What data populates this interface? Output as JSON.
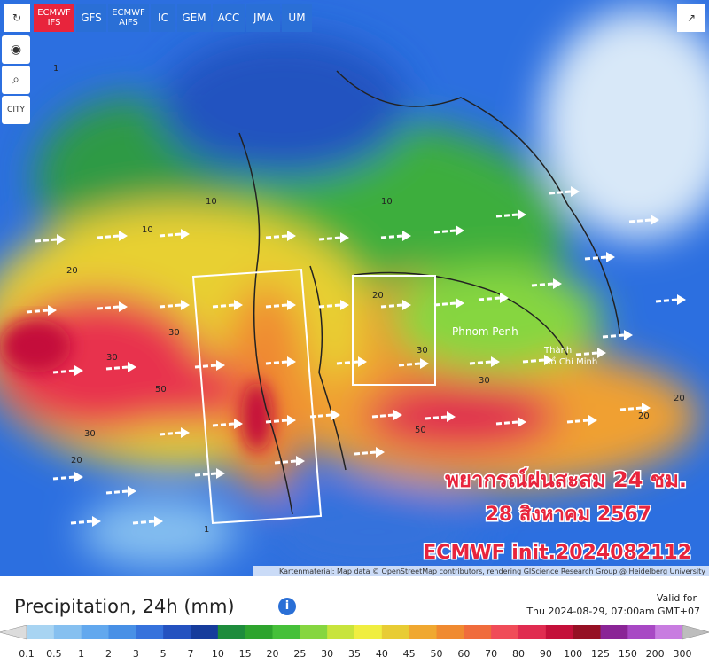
{
  "toolbar": {
    "models": [
      "ECMWF IFS",
      "GFS",
      "ECMWF AIFS",
      "IC",
      "GEM",
      "ACC",
      "JMA",
      "UM"
    ],
    "city": "CITY"
  },
  "map": {
    "places": [
      "Phnom Penh",
      "Thành",
      "Hồ Chí Minh"
    ],
    "contours": [
      "10",
      "20",
      "30",
      "30",
      "50",
      "30",
      "20",
      "10",
      "20",
      "30",
      "50",
      "30",
      "20",
      "20",
      "10",
      "1",
      "1"
    ],
    "overlay": [
      "พยากรณ์ฝนสะสม 24 ชม.",
      "28 สิงหาคม 2567",
      "ECMWF init.2024082112"
    ],
    "attribution": "Kartenmaterial: Map data © OpenStreetMap contributors, rendering GIScience Research Group @ Heidelberg University"
  },
  "legend": {
    "title": "Precipitation, 24h (mm)",
    "valid_label": "Valid for",
    "valid_time": "Thu 2024-08-29, 07:00am GMT+07",
    "labels": [
      0.1,
      0.5,
      1,
      2,
      3,
      5,
      7,
      10,
      15,
      20,
      25,
      30,
      35,
      40,
      45,
      50,
      60,
      70,
      80,
      90,
      100,
      125,
      150,
      200,
      300
    ],
    "colors": [
      "#dcdcdc",
      "#a8d4f2",
      "#86c0f0",
      "#62a8ee",
      "#4890e6",
      "#3672dc",
      "#2452c0",
      "#163c9c",
      "#1e8c3c",
      "#2ea42e",
      "#46c03a",
      "#86d640",
      "#c8e43c",
      "#f0ee40",
      "#e8cc34",
      "#f0a830",
      "#f08a30",
      "#f06c3c",
      "#f04c58",
      "#e02c50",
      "#c4103a",
      "#961024",
      "#8a2496",
      "#a848c4",
      "#c87ce0",
      "#e4aef0",
      "#bdbdbd"
    ]
  }
}
